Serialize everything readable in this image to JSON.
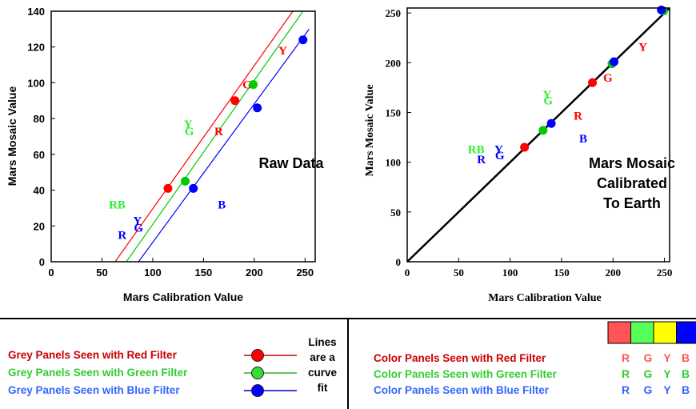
{
  "chart_data": [
    {
      "type": "scatter",
      "annotation": "Raw Data",
      "xlabel": "Mars Calibration Value",
      "ylabel": "Mars Mosaic Value",
      "xlim": [
        0,
        260
      ],
      "ylim": [
        0,
        140
      ],
      "xticks": [
        "0",
        "50",
        "100",
        "150",
        "200",
        "250"
      ],
      "yticks": [
        "0",
        "20",
        "40",
        "60",
        "80",
        "100",
        "120",
        "140"
      ],
      "grey_panels": {
        "red": {
          "color": "#ff0000",
          "points": [
            [
              115,
              41
            ],
            [
              181,
              90
            ]
          ]
        },
        "green": {
          "color": "#00cc00",
          "points": [
            [
              132,
              45
            ],
            [
              199,
              99
            ]
          ]
        },
        "blue": {
          "color": "#0000ff",
          "points": [
            [
              140,
              41
            ],
            [
              203,
              86
            ],
            [
              248,
              124
            ]
          ]
        }
      },
      "fit_lines": {
        "red": [
          [
            63,
            0
          ],
          [
            238,
            140
          ]
        ],
        "green": [
          [
            74,
            0
          ],
          [
            248,
            140
          ]
        ],
        "blue": [
          [
            86,
            0
          ],
          [
            254,
            130
          ]
        ]
      },
      "color_panel_letters": [
        {
          "text": "R",
          "x": 70,
          "y": 15,
          "color": "#0000ff"
        },
        {
          "text": "G",
          "x": 86,
          "y": 19,
          "color": "#0000ff"
        },
        {
          "text": "Y",
          "x": 85,
          "y": 23,
          "color": "#0000ff"
        },
        {
          "text": "RB",
          "x": 65,
          "y": 32,
          "color": "#33ee33"
        },
        {
          "text": "G",
          "x": 136,
          "y": 73,
          "color": "#33ee33"
        },
        {
          "text": "Y",
          "x": 135,
          "y": 77,
          "color": "#33ee33"
        },
        {
          "text": "B",
          "x": 168,
          "y": 32,
          "color": "#0000ff"
        },
        {
          "text": "R",
          "x": 165,
          "y": 73,
          "color": "#ff0000"
        },
        {
          "text": "G",
          "x": 193,
          "y": 99,
          "color": "#ff0000"
        },
        {
          "text": "Y",
          "x": 228,
          "y": 118,
          "color": "#ff0000"
        }
      ]
    },
    {
      "type": "scatter",
      "annotation": "Mars Mosaic Calibrated To Earth",
      "xlabel": "Mars Calibration Value",
      "ylabel": "Mars Mosaic Value",
      "xlim": [
        0,
        255
      ],
      "ylim": [
        0,
        255
      ],
      "xticks": [
        "0",
        "50",
        "100",
        "150",
        "200",
        "250"
      ],
      "yticks": [
        "0",
        "50",
        "100",
        "150",
        "200",
        "250"
      ],
      "identity_line": [
        [
          0,
          0
        ],
        [
          255,
          255
        ]
      ],
      "grey_panels": {
        "red": {
          "color": "#ff0000",
          "points": [
            [
              114,
              115
            ],
            [
              180,
              180
            ]
          ]
        },
        "green": {
          "color": "#00cc00",
          "points": [
            [
              132,
              132
            ],
            [
              199,
              199
            ],
            [
              249,
              252
            ]
          ]
        },
        "blue": {
          "color": "#0000ff",
          "points": [
            [
              140,
              139
            ],
            [
              201,
              201
            ],
            [
              247,
              253
            ]
          ]
        }
      },
      "color_panel_letters": [
        {
          "text": "R",
          "x": 72,
          "y": 103,
          "color": "#0000ff"
        },
        {
          "text": "G",
          "x": 90,
          "y": 107,
          "color": "#0000ff"
        },
        {
          "text": "Y",
          "x": 89,
          "y": 113,
          "color": "#0000ff"
        },
        {
          "text": "RB",
          "x": 67,
          "y": 113,
          "color": "#33ee33"
        },
        {
          "text": "G",
          "x": 137,
          "y": 162,
          "color": "#33ee33"
        },
        {
          "text": "Y",
          "x": 136,
          "y": 168,
          "color": "#33ee33"
        },
        {
          "text": "B",
          "x": 171,
          "y": 124,
          "color": "#0000ff"
        },
        {
          "text": "R",
          "x": 166,
          "y": 147,
          "color": "#ff0000"
        },
        {
          "text": "G",
          "x": 195,
          "y": 185,
          "color": "#ff0000"
        },
        {
          "text": "Y",
          "x": 229,
          "y": 216,
          "color": "#ff0000"
        }
      ]
    }
  ],
  "legend_left": {
    "items": [
      {
        "label": "Grey Panels Seen with Red Filter",
        "color": "#cc0000",
        "dot": "#ff0000",
        "line": "#cc0000"
      },
      {
        "label": "Grey Panels Seen with Green Filter",
        "color": "#33cc33",
        "dot": "#33dd33",
        "line": "#33aa33"
      },
      {
        "label": "Grey Panels Seen with Blue Filter",
        "color": "#3366ff",
        "dot": "#0000ff",
        "line": "#0000cc"
      }
    ],
    "note": [
      "Lines",
      "are a",
      "curve",
      "fit"
    ]
  },
  "legend_right": {
    "swatches": [
      "#ff5555",
      "#55ff55",
      "#ffff00",
      "#0000ff"
    ],
    "items": [
      {
        "label": "Color Panels Seen with Red Filter",
        "color": "#cc0000",
        "letters": [
          "R",
          "G",
          "Y",
          "B"
        ],
        "letter_color": "#ff5555"
      },
      {
        "label": "Color Panels Seen with Green Filter",
        "color": "#33cc33",
        "letters": [
          "R",
          "G",
          "Y",
          "B"
        ],
        "letter_color": "#33cc33"
      },
      {
        "label": "Color Panels Seen with Blue Filter",
        "color": "#3366ff",
        "letters": [
          "R",
          "G",
          "Y",
          "B"
        ],
        "letter_color": "#3366ff"
      }
    ]
  }
}
